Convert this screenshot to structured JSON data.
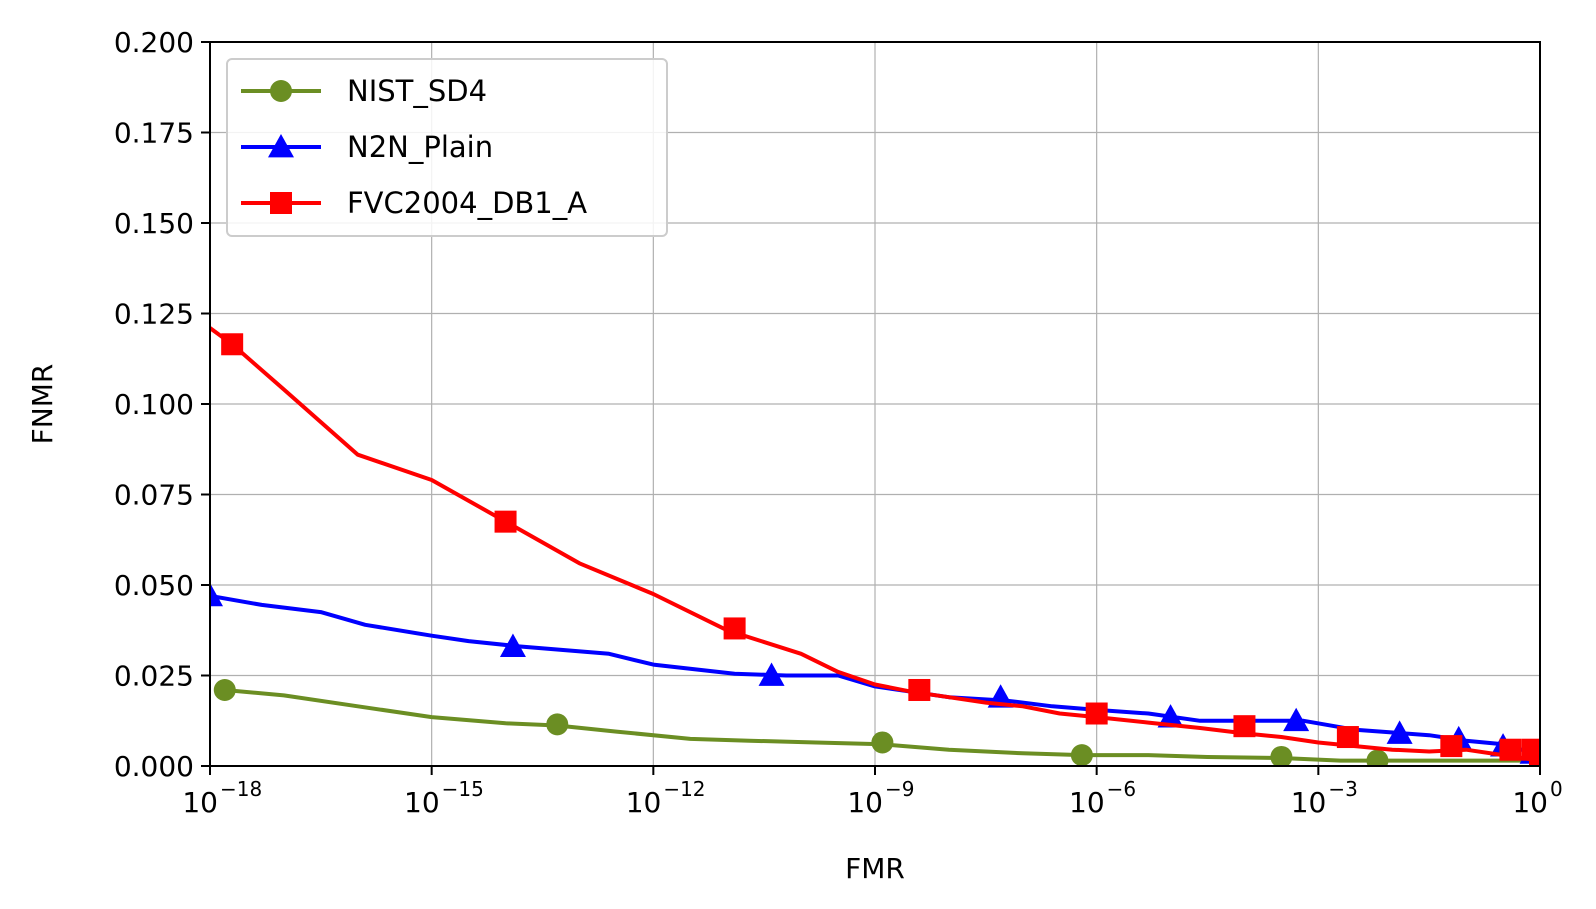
{
  "chart_data": {
    "type": "line",
    "title": "",
    "xlabel": "FMR",
    "ylabel": "FNMR",
    "xscale": "log",
    "xlim_exp": [
      -18,
      0
    ],
    "ylim": [
      0,
      0.2
    ],
    "grid": true,
    "legend_position": "top-left",
    "x_ticks": [
      {
        "base": "10",
        "exp": "−18",
        "value_exp": -18
      },
      {
        "base": "10",
        "exp": "−15",
        "value_exp": -15
      },
      {
        "base": "10",
        "exp": "−12",
        "value_exp": -12
      },
      {
        "base": "10",
        "exp": "−9",
        "value_exp": -9
      },
      {
        "base": "10",
        "exp": "−6",
        "value_exp": -6
      },
      {
        "base": "10",
        "exp": "−3",
        "value_exp": -3
      },
      {
        "base": "10",
        "exp": "0",
        "value_exp": 0
      }
    ],
    "y_ticks": [
      {
        "label": "0.000",
        "value": 0.0
      },
      {
        "label": "0.025",
        "value": 0.025
      },
      {
        "label": "0.050",
        "value": 0.05
      },
      {
        "label": "0.075",
        "value": 0.075
      },
      {
        "label": "0.100",
        "value": 0.1
      },
      {
        "label": "0.125",
        "value": 0.125
      },
      {
        "label": "0.150",
        "value": 0.15
      },
      {
        "label": "0.175",
        "value": 0.175
      },
      {
        "label": "0.200",
        "value": 0.2
      }
    ],
    "series": [
      {
        "name": "NIST_SD4",
        "color": "#6b8e23",
        "marker": "circle",
        "line_log10_x": [
          -17.8,
          -17.0,
          -16.0,
          -15.0,
          -14.0,
          -13.3,
          -12.5,
          -11.5,
          -10.7,
          -9.8,
          -8.9,
          -8.0,
          -7.0,
          -6.2,
          -5.3,
          -4.5,
          -3.5,
          -2.7,
          -2.0,
          -1.0,
          0.0
        ],
        "line_y": [
          0.021,
          0.0195,
          0.0165,
          0.0135,
          0.0118,
          0.0112,
          0.0095,
          0.0075,
          0.007,
          0.0065,
          0.006,
          0.0045,
          0.0035,
          0.003,
          0.003,
          0.0025,
          0.0022,
          0.0015,
          0.0015,
          0.0015,
          0.0015
        ],
        "marker_log10_x": [
          -17.8,
          -13.3,
          -8.9,
          -6.2,
          -3.5,
          -2.2
        ],
        "marker_y": [
          0.021,
          0.0115,
          0.0065,
          0.003,
          0.0025,
          0.0015
        ]
      },
      {
        "name": "N2N_Plain",
        "color": "#0000ff",
        "marker": "triangle",
        "line_log10_x": [
          -18.0,
          -17.3,
          -16.5,
          -15.9,
          -15.0,
          -14.5,
          -13.8,
          -12.6,
          -12.0,
          -10.9,
          -10.2,
          -9.5,
          -9.0,
          -8.0,
          -7.2,
          -6.6,
          -6.0,
          -5.3,
          -4.6,
          -3.6,
          -3.2,
          -2.5,
          -1.5,
          -1.0,
          -0.5,
          0.0
        ],
        "line_y": [
          0.047,
          0.0445,
          0.0425,
          0.039,
          0.036,
          0.0345,
          0.033,
          0.031,
          0.028,
          0.0255,
          0.025,
          0.025,
          0.022,
          0.019,
          0.018,
          0.0165,
          0.0155,
          0.0145,
          0.0125,
          0.0125,
          0.0125,
          0.01,
          0.0085,
          0.007,
          0.006,
          0.003
        ],
        "marker_log10_x": [
          -18.0,
          -13.9,
          -10.4,
          -7.3,
          -5.0,
          -3.3,
          -1.9,
          -1.1,
          -0.5,
          -0.1
        ],
        "marker_y": [
          0.047,
          0.033,
          0.025,
          0.019,
          0.0135,
          0.0125,
          0.009,
          0.0075,
          0.0055,
          0.0035
        ]
      },
      {
        "name": "FVC2004_DB1_A",
        "color": "#ff0000",
        "marker": "square",
        "line_log10_x": [
          -18.0,
          -17.7,
          -17.0,
          -16.0,
          -15.0,
          -14.0,
          -13.0,
          -12.0,
          -11.0,
          -10.0,
          -9.5,
          -9.0,
          -8.5,
          -8.0,
          -7.5,
          -7.0,
          -6.5,
          -6.0,
          -5.3,
          -4.6,
          -4.0,
          -3.5,
          -3.0,
          -2.5,
          -2.0,
          -1.5,
          -1.0,
          -0.5,
          0.0
        ],
        "line_y": [
          0.121,
          0.1165,
          0.104,
          0.086,
          0.079,
          0.0675,
          0.056,
          0.0475,
          0.0375,
          0.031,
          0.026,
          0.0225,
          0.0205,
          0.019,
          0.0175,
          0.0165,
          0.0145,
          0.0135,
          0.012,
          0.0105,
          0.009,
          0.008,
          0.0065,
          0.0055,
          0.0045,
          0.004,
          0.0045,
          0.003,
          0.0015
        ],
        "marker_log10_x": [
          -17.7,
          -14.0,
          -10.9,
          -8.4,
          -6.0,
          -4.0,
          -2.6,
          -1.2,
          -0.4,
          -0.1,
          0.0
        ],
        "marker_y": [
          0.1165,
          0.0675,
          0.038,
          0.021,
          0.0145,
          0.011,
          0.008,
          0.0055,
          0.0045,
          0.0045,
          0.0015
        ]
      }
    ]
  }
}
